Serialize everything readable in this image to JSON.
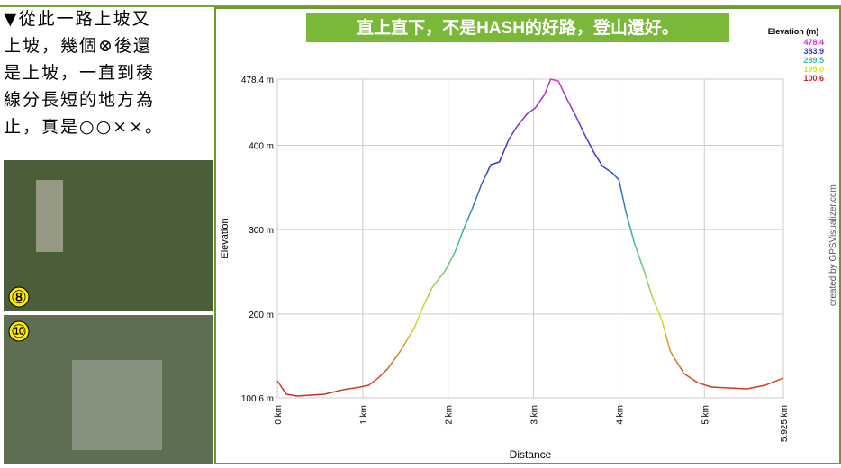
{
  "side_text": {
    "lines": [
      "▼從此一路上坡又",
      "上坡，幾個⊗後還",
      "是上坡，一直到稜",
      "線分長短的地方為",
      "止，真是○○××。"
    ]
  },
  "photos": {
    "badges": [
      "⑧",
      "⑩"
    ]
  },
  "chart_data": {
    "type": "line",
    "title": "直上直下，不是HASH的好路，登山還好。",
    "x_label": "Distance",
    "y_label": "Elevation",
    "credit": "created by GPSVisualizer.com",
    "legend_title": "Elevation (m)",
    "legend_scale": [
      {
        "value": 478.4,
        "label": "478.4",
        "color": "#cc33cc"
      },
      {
        "value": 383.9,
        "label": "383.9",
        "color": "#3333cc"
      },
      {
        "value": 289.5,
        "label": "289.5",
        "color": "#33bbaa"
      },
      {
        "value": 195.0,
        "label": "195.0",
        "color": "#dddd22"
      },
      {
        "value": 100.6,
        "label": "100.6",
        "color": "#cc2222"
      }
    ],
    "x": [
      0,
      0.105,
      0.23,
      0.55,
      0.76,
      0.97,
      1.07,
      1.18,
      1.29,
      1.44,
      1.6,
      1.71,
      1.81,
      1.97,
      2.08,
      2.18,
      2.29,
      2.39,
      2.5,
      2.6,
      2.71,
      2.81,
      2.92,
      3.02,
      3.13,
      3.2,
      3.29,
      3.39,
      3.5,
      3.6,
      3.71,
      3.81,
      3.92,
      4.0,
      4.08,
      4.18,
      4.29,
      4.39,
      4.5,
      4.6,
      4.76,
      4.92,
      5.08,
      5.5,
      5.71,
      5.925
    ],
    "series": [
      {
        "name": "Elevation",
        "values": [
          120.9,
          104.9,
          102.7,
          104.9,
          110,
          113.4,
          115.5,
          124,
          134.8,
          156,
          182.8,
          209.5,
          230.8,
          252.1,
          273.5,
          300.2,
          326.9,
          353.5,
          377,
          380.2,
          406.9,
          422.9,
          436.8,
          444.3,
          460.3,
          478.4,
          476.3,
          454.9,
          433.6,
          412.2,
          390.9,
          374.9,
          367.4,
          358.9,
          321.5,
          284.2,
          252.1,
          220.1,
          193.4,
          156,
          129.4,
          118.7,
          113.4,
          111.3,
          115.5,
          124
        ]
      }
    ],
    "xlim": [
      0,
      5.925
    ],
    "ylim": [
      100.6,
      478.4
    ],
    "xticks": [
      {
        "value": 0,
        "label": "0 km"
      },
      {
        "value": 1,
        "label": "1 km"
      },
      {
        "value": 2,
        "label": "2 km"
      },
      {
        "value": 3,
        "label": "3 km"
      },
      {
        "value": 4,
        "label": "4 km"
      },
      {
        "value": 5,
        "label": "5 km"
      },
      {
        "value": 5.925,
        "label": "5.925 km"
      }
    ],
    "yticks": [
      {
        "value": 100.6,
        "label": "100.6 m"
      },
      {
        "value": 200,
        "label": "200 m"
      },
      {
        "value": 300,
        "label": "300 m"
      },
      {
        "value": 400,
        "label": "400 m"
      },
      {
        "value": 478.4,
        "label": "478.4 m"
      }
    ],
    "grid": true
  }
}
